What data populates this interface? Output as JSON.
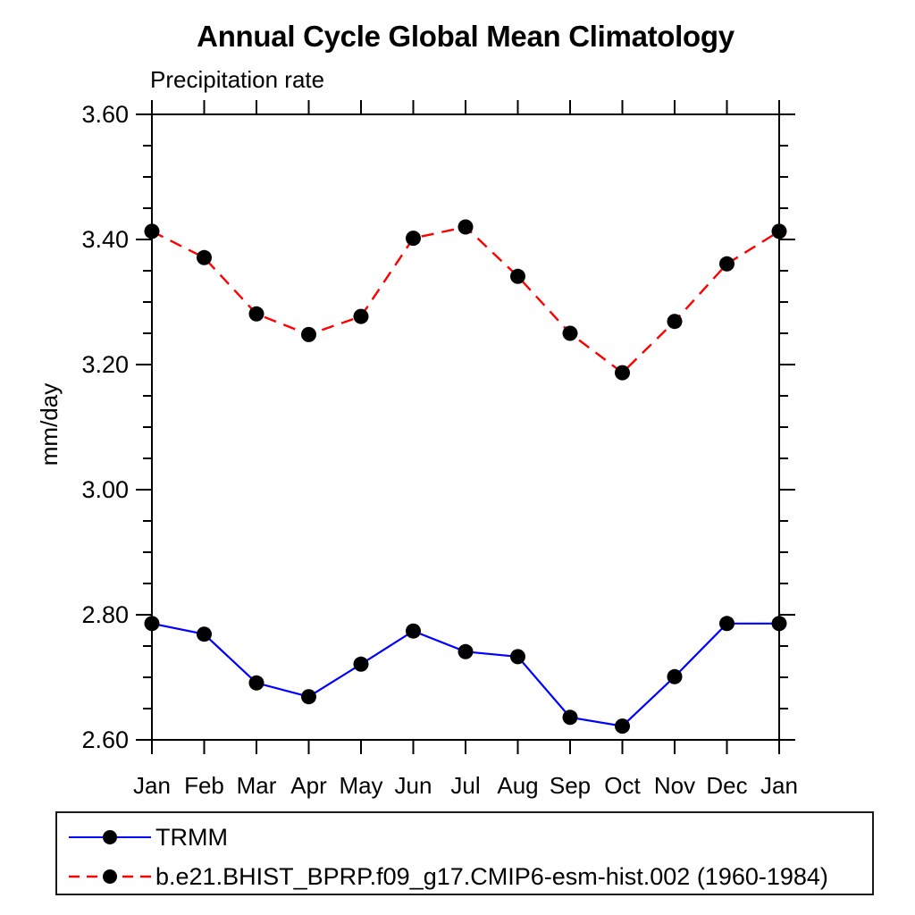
{
  "page": {
    "background": "#ffffff"
  },
  "chart_data": {
    "type": "line",
    "title": "Annual Cycle Global Mean Climatology",
    "subtitle": "Precipitation rate",
    "xlabel": "",
    "ylabel": "mm/day",
    "ylim": [
      2.6,
      3.6
    ],
    "ytick_labels": [
      "3.60",
      "3.40",
      "3.20",
      "3.00",
      "2.80",
      "2.60"
    ],
    "ytick_major_values": [
      3.6,
      3.4,
      3.2,
      3.0,
      2.8,
      2.6
    ],
    "ytick_minor_step": 0.05,
    "grid": false,
    "legend_position": "bottom-left-box",
    "categories": [
      "Jan",
      "Feb",
      "Mar",
      "Apr",
      "May",
      "Jun",
      "Jul",
      "Aug",
      "Sep",
      "Oct",
      "Nov",
      "Dec",
      "Jan"
    ],
    "marker": {
      "shape": "circle",
      "color": "#000000"
    },
    "axis_color": "#000000",
    "series": [
      {
        "name": "TRMM",
        "color": "#0000ff",
        "line_style": "solid",
        "values": [
          2.786,
          2.769,
          2.691,
          2.669,
          2.721,
          2.774,
          2.741,
          2.733,
          2.636,
          2.622,
          2.701,
          2.786,
          2.786
        ]
      },
      {
        "name": "b.e21.BHIST_BPRP.f09_g17.CMIP6-esm-hist.002 (1960-1984)",
        "color": "#ff0000",
        "line_style": "dashed",
        "values": [
          3.413,
          3.371,
          3.281,
          3.248,
          3.277,
          3.402,
          3.42,
          3.341,
          3.25,
          3.187,
          3.269,
          3.361,
          3.413
        ]
      }
    ]
  }
}
